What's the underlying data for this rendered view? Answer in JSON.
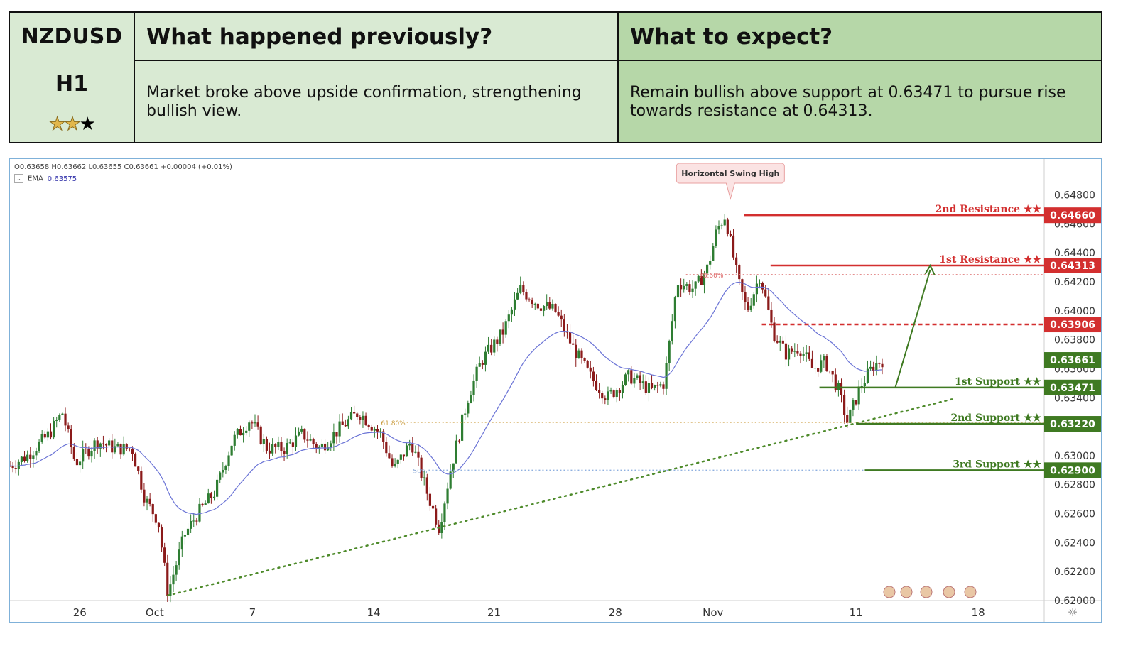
{
  "header": {
    "symbol": "NZDUSD",
    "timeframe": "H1",
    "stars_filled": 2,
    "stars_total": 3,
    "previous_title": "What happened previously?",
    "previous_body": "Market broke above upside confirmation, strengthening bullish view.",
    "expect_title": "What to expect?",
    "expect_body": "Remain bullish above support at 0.63471 to pursue rise towards resistance at 0.64313."
  },
  "legend": {
    "ohlc": "O0.63658  H0.63662  L0.63655  C0.63661  +0.00004 (+0.01%)",
    "ema_label": "EMA",
    "ema_value": "0.63575",
    "ema_box": "⌄"
  },
  "colors": {
    "resistance": "#d32f2f",
    "support": "#3f7a22",
    "candle_up": "#2e7d32",
    "candle_down": "#8b1a1a",
    "ema": "#6b74d6",
    "trendline": "#4d8a2a",
    "fib618": "#d8b36a",
    "fib50": "#8fb0e0"
  },
  "chart_data": {
    "type": "candlestick",
    "x_tick_labels": [
      "26",
      "Oct",
      "7",
      "14",
      "21",
      "28",
      "Nov",
      "11",
      "18"
    ],
    "y_tick_labels": [
      "0.64800",
      "0.64600",
      "0.64400",
      "0.64200",
      "0.64000",
      "0.63800",
      "0.63600",
      "0.63400",
      "0.63000",
      "0.62800",
      "0.62600",
      "0.62400",
      "0.62200",
      "0.62000"
    ],
    "ylim": [
      0.62,
      0.6495
    ],
    "levels": [
      {
        "label": "2nd Resistance ★★",
        "value": 0.6466,
        "tag": "0.64660",
        "kind": "resistance"
      },
      {
        "label": "1st Resistance ★★",
        "value": 0.64313,
        "tag": "0.64313",
        "kind": "resistance"
      },
      {
        "label": "",
        "value": 0.63906,
        "tag": "0.63906",
        "kind": "resistance-dashed"
      },
      {
        "label": "",
        "value": 0.63661,
        "tag": "0.63661",
        "kind": "current"
      },
      {
        "label": "1st Support ★★",
        "value": 0.63471,
        "tag": "0.63471",
        "kind": "support"
      },
      {
        "label": "2nd Support ★★",
        "value": 0.6322,
        "tag": "0.63220",
        "kind": "support"
      },
      {
        "label": "3rd Support ★★",
        "value": 0.629,
        "tag": "0.62900",
        "kind": "support"
      }
    ],
    "annotations": {
      "swing_high": "Horizontal Swing High",
      "fib_618": "61.80%",
      "fib_50": "50%",
      "fib_786": "78.60%"
    },
    "close_keypoints": [
      [
        0,
        0.6293
      ],
      [
        0.02,
        0.63
      ],
      [
        0.045,
        0.6315
      ],
      [
        0.06,
        0.633
      ],
      [
        0.075,
        0.6295
      ],
      [
        0.1,
        0.631
      ],
      [
        0.12,
        0.6305
      ],
      [
        0.14,
        0.6305
      ],
      [
        0.155,
        0.627
      ],
      [
        0.17,
        0.6255
      ],
      [
        0.181,
        0.6205
      ],
      [
        0.2,
        0.6245
      ],
      [
        0.215,
        0.626
      ],
      [
        0.235,
        0.6275
      ],
      [
        0.255,
        0.631
      ],
      [
        0.275,
        0.6325
      ],
      [
        0.295,
        0.6305
      ],
      [
        0.315,
        0.6305
      ],
      [
        0.335,
        0.6315
      ],
      [
        0.355,
        0.6305
      ],
      [
        0.38,
        0.632
      ],
      [
        0.4,
        0.633
      ],
      [
        0.425,
        0.6315
      ],
      [
        0.44,
        0.629
      ],
      [
        0.46,
        0.631
      ],
      [
        0.478,
        0.6275
      ],
      [
        0.492,
        0.625
      ],
      [
        0.505,
        0.629
      ],
      [
        0.525,
        0.634
      ],
      [
        0.54,
        0.6365
      ],
      [
        0.565,
        0.6385
      ],
      [
        0.585,
        0.6415
      ],
      [
        0.605,
        0.6405
      ],
      [
        0.625,
        0.64
      ],
      [
        0.645,
        0.6375
      ],
      [
        0.665,
        0.6355
      ],
      [
        0.685,
        0.634
      ],
      [
        0.71,
        0.6355
      ],
      [
        0.735,
        0.6345
      ],
      [
        0.75,
        0.635
      ],
      [
        0.765,
        0.642
      ],
      [
        0.785,
        0.6415
      ],
      [
        0.8,
        0.643
      ],
      [
        0.81,
        0.6455
      ],
      [
        0.82,
        0.6466
      ],
      [
        0.835,
        0.642
      ],
      [
        0.845,
        0.64
      ],
      [
        0.86,
        0.6425
      ],
      [
        0.875,
        0.6385
      ],
      [
        0.89,
        0.637
      ],
      [
        0.905,
        0.6375
      ],
      [
        0.92,
        0.636
      ],
      [
        0.935,
        0.6365
      ],
      [
        0.95,
        0.6345
      ],
      [
        0.96,
        0.6323
      ],
      [
        0.975,
        0.6348
      ],
      [
        0.99,
        0.6362
      ],
      [
        1.0,
        0.6366
      ]
    ]
  },
  "axis": {
    "settings_icon": "gear-icon"
  }
}
